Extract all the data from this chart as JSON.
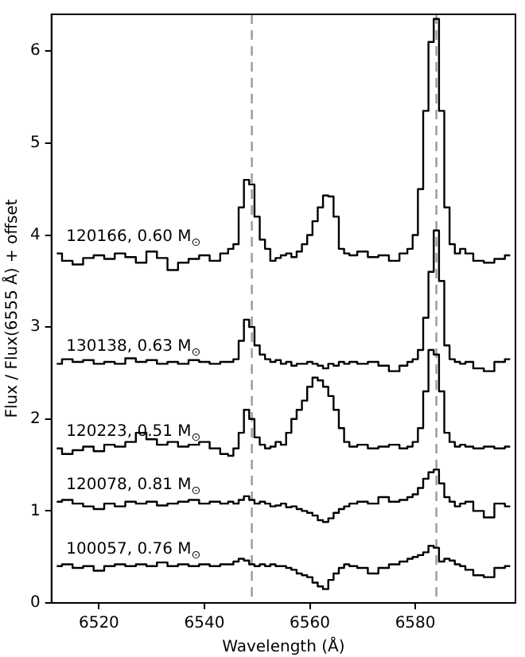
{
  "chart_data": {
    "type": "step",
    "xlabel": "Wavelength (Å)",
    "ylabel": "Flux / Flux(6555 Å) + offset",
    "x": [
      6512,
      6514,
      6516,
      6518,
      6520,
      6522,
      6524,
      6526,
      6528,
      6530,
      6532,
      6534,
      6536,
      6538,
      6540,
      6542,
      6544,
      6545,
      6546,
      6547,
      6548,
      6549,
      6550,
      6551,
      6552,
      6553,
      6554,
      6555,
      6556,
      6557,
      6558,
      6559,
      6560,
      6561,
      6562,
      6563,
      6564,
      6565,
      6566,
      6567,
      6568,
      6570,
      6572,
      6574,
      6576,
      6578,
      6579,
      6580,
      6581,
      6582,
      6583,
      6584,
      6585,
      6586,
      6587,
      6588,
      6589,
      6590,
      6592,
      6594,
      6596,
      6598
    ],
    "series": [
      {
        "name": "120166, 0.60 M$_{⊙}$",
        "color": "#000000",
        "values": [
          3.8,
          3.72,
          3.68,
          3.75,
          3.78,
          3.74,
          3.8,
          3.76,
          3.7,
          3.82,
          3.75,
          3.62,
          3.7,
          3.74,
          3.78,
          3.72,
          3.8,
          3.85,
          3.9,
          4.3,
          4.6,
          4.55,
          4.2,
          3.95,
          3.85,
          3.72,
          3.75,
          3.78,
          3.8,
          3.76,
          3.82,
          3.9,
          4.0,
          4.15,
          4.3,
          4.43,
          4.42,
          4.2,
          3.85,
          3.8,
          3.78,
          3.82,
          3.76,
          3.78,
          3.72,
          3.8,
          3.85,
          4.0,
          4.5,
          5.35,
          6.1,
          6.35,
          5.35,
          4.3,
          3.9,
          3.8,
          3.85,
          3.8,
          3.72,
          3.7,
          3.74,
          3.78
        ]
      },
      {
        "name": "130138, 0.63 M$_{⊙}$",
        "color": "#000000",
        "values": [
          2.6,
          2.65,
          2.62,
          2.64,
          2.6,
          2.62,
          2.6,
          2.66,
          2.62,
          2.64,
          2.6,
          2.62,
          2.6,
          2.64,
          2.62,
          2.6,
          2.62,
          2.62,
          2.65,
          2.85,
          3.08,
          3.0,
          2.8,
          2.7,
          2.65,
          2.62,
          2.64,
          2.6,
          2.62,
          2.58,
          2.6,
          2.6,
          2.62,
          2.6,
          2.58,
          2.55,
          2.6,
          2.58,
          2.62,
          2.6,
          2.62,
          2.6,
          2.62,
          2.58,
          2.52,
          2.58,
          2.62,
          2.65,
          2.75,
          3.1,
          3.6,
          4.05,
          3.5,
          2.8,
          2.65,
          2.62,
          2.6,
          2.62,
          2.55,
          2.52,
          2.62,
          2.65
        ]
      },
      {
        "name": "120223, 0.51 M$_{⊙}$",
        "color": "#000000",
        "values": [
          1.68,
          1.62,
          1.66,
          1.7,
          1.65,
          1.72,
          1.7,
          1.75,
          1.85,
          1.78,
          1.72,
          1.75,
          1.7,
          1.72,
          1.75,
          1.68,
          1.62,
          1.6,
          1.68,
          1.85,
          2.1,
          2.0,
          1.8,
          1.72,
          1.68,
          1.7,
          1.75,
          1.72,
          1.85,
          2.0,
          2.1,
          2.2,
          2.35,
          2.45,
          2.42,
          2.35,
          2.25,
          2.1,
          1.9,
          1.75,
          1.7,
          1.72,
          1.68,
          1.7,
          1.72,
          1.68,
          1.7,
          1.75,
          1.9,
          2.3,
          2.75,
          2.7,
          2.3,
          1.85,
          1.75,
          1.7,
          1.72,
          1.7,
          1.68,
          1.7,
          1.68,
          1.7
        ]
      },
      {
        "name": "120078, 0.81 M$_{⊙}$",
        "color": "#000000",
        "values": [
          1.1,
          1.12,
          1.08,
          1.05,
          1.02,
          1.08,
          1.05,
          1.1,
          1.08,
          1.1,
          1.06,
          1.08,
          1.1,
          1.12,
          1.08,
          1.1,
          1.08,
          1.1,
          1.08,
          1.12,
          1.16,
          1.12,
          1.08,
          1.1,
          1.08,
          1.05,
          1.06,
          1.08,
          1.04,
          1.05,
          1.02,
          1.0,
          0.98,
          0.95,
          0.9,
          0.88,
          0.92,
          0.98,
          1.02,
          1.05,
          1.08,
          1.1,
          1.08,
          1.15,
          1.1,
          1.12,
          1.15,
          1.18,
          1.25,
          1.35,
          1.42,
          1.45,
          1.3,
          1.15,
          1.1,
          1.05,
          1.08,
          1.1,
          1.0,
          0.93,
          1.08,
          1.05
        ]
      },
      {
        "name": "100057, 0.76 M$_{⊙}$",
        "color": "#000000",
        "values": [
          0.4,
          0.42,
          0.38,
          0.4,
          0.35,
          0.4,
          0.42,
          0.4,
          0.42,
          0.4,
          0.44,
          0.4,
          0.42,
          0.4,
          0.42,
          0.4,
          0.42,
          0.42,
          0.45,
          0.48,
          0.46,
          0.42,
          0.4,
          0.42,
          0.4,
          0.42,
          0.4,
          0.4,
          0.38,
          0.36,
          0.32,
          0.3,
          0.28,
          0.22,
          0.18,
          0.15,
          0.25,
          0.32,
          0.38,
          0.42,
          0.4,
          0.38,
          0.32,
          0.38,
          0.42,
          0.45,
          0.48,
          0.5,
          0.52,
          0.55,
          0.62,
          0.6,
          0.45,
          0.48,
          0.46,
          0.42,
          0.4,
          0.36,
          0.3,
          0.28,
          0.38,
          0.4
        ]
      }
    ],
    "xlim": [
      6511,
      6599
    ],
    "ylim": [
      0,
      6.4
    ],
    "xticks": [
      6520,
      6540,
      6560,
      6580
    ],
    "yticks": [
      0,
      1,
      2,
      3,
      4,
      5,
      6
    ],
    "ref_lines": [
      {
        "axis": "x",
        "value": 6549,
        "color": "#999999",
        "line_style": "dashed"
      },
      {
        "axis": "x",
        "value": 6584,
        "color": "#999999",
        "line_style": "dashed"
      }
    ]
  }
}
